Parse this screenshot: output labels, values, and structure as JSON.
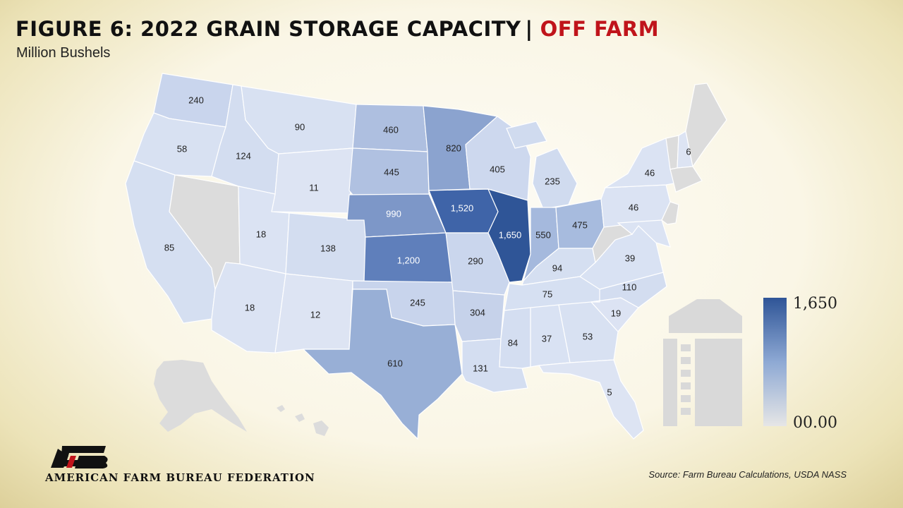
{
  "header": {
    "title_main": "FIGURE 6: 2022 GRAIN STORAGE CAPACITY",
    "title_sep": "|",
    "title_highlight": "OFF FARM",
    "subtitle": "Million Bushels",
    "highlight_color": "#c0141b"
  },
  "legend": {
    "max_label": "1,650",
    "min_label": "00.00",
    "max_color": "#2f5597",
    "min_color": "#e6e6e6"
  },
  "map": {
    "no_data_color": "#dcdcdc",
    "states": [
      {
        "id": "WA",
        "label": "240"
      },
      {
        "id": "OR",
        "label": "58"
      },
      {
        "id": "CA",
        "label": "85"
      },
      {
        "id": "ID",
        "label": "124"
      },
      {
        "id": "MT",
        "label": "90"
      },
      {
        "id": "WY",
        "label": "11"
      },
      {
        "id": "UT",
        "label": "18"
      },
      {
        "id": "AZ",
        "label": "18"
      },
      {
        "id": "CO",
        "label": "138"
      },
      {
        "id": "NM",
        "label": "12"
      },
      {
        "id": "ND",
        "label": "460"
      },
      {
        "id": "SD",
        "label": "445"
      },
      {
        "id": "NE",
        "label": "990"
      },
      {
        "id": "KS",
        "label": "1,200"
      },
      {
        "id": "OK",
        "label": "245"
      },
      {
        "id": "TX",
        "label": "610"
      },
      {
        "id": "MN",
        "label": "820"
      },
      {
        "id": "IA",
        "label": "1,520"
      },
      {
        "id": "MO",
        "label": "290"
      },
      {
        "id": "AR",
        "label": "304"
      },
      {
        "id": "LA",
        "label": "131"
      },
      {
        "id": "WI",
        "label": "405"
      },
      {
        "id": "IL",
        "label": "1,650"
      },
      {
        "id": "MI",
        "label": "235"
      },
      {
        "id": "IN",
        "label": "550"
      },
      {
        "id": "OH",
        "label": "475"
      },
      {
        "id": "KY",
        "label": "94"
      },
      {
        "id": "TN",
        "label": "75"
      },
      {
        "id": "MS",
        "label": "84"
      },
      {
        "id": "AL",
        "label": "37"
      },
      {
        "id": "GA",
        "label": "53"
      },
      {
        "id": "FL",
        "label": "5"
      },
      {
        "id": "SC",
        "label": "19"
      },
      {
        "id": "NC",
        "label": "110"
      },
      {
        "id": "VA",
        "label": "39"
      },
      {
        "id": "PA",
        "label": "46"
      },
      {
        "id": "NY",
        "label": "46"
      },
      {
        "id": "NH",
        "label": "6"
      }
    ]
  },
  "footer": {
    "organization": "AMERICAN FARM BUREAU FEDERATION",
    "source": "Source: Farm Bureau Calculations, USDA NASS"
  }
}
